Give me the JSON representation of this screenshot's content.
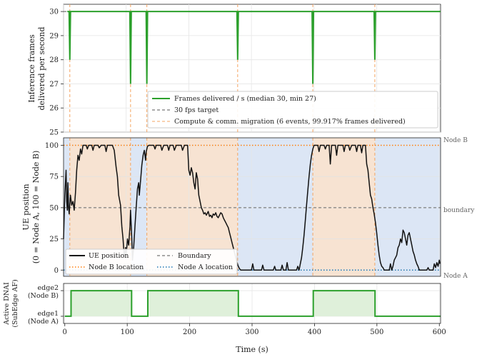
{
  "chart_data": [
    {
      "type": "line",
      "panel": "frames",
      "ylabel": [
        "Inference frames",
        "delivered per second"
      ],
      "ylim": [
        25,
        30.3
      ],
      "yticks": [
        25,
        26,
        27,
        28,
        29,
        30
      ],
      "xlim": [
        0,
        602
      ],
      "x_start": 6,
      "grid": true,
      "legend_placement": "lower-right",
      "series": [
        {
          "name": "Frames delivered / s (median 30, min 27)",
          "color": "#2ca02c",
          "baseline": 30,
          "dips": [
            {
              "x": 10,
              "y": 28
            },
            {
              "x": 107,
              "y": 27
            },
            {
              "x": 133,
              "y": 27
            },
            {
              "x": 278,
              "y": 28
            },
            {
              "x": 398,
              "y": 27
            },
            {
              "x": 497,
              "y": 28
            }
          ]
        },
        {
          "name": "30 fps target",
          "color": "#555555",
          "y": 30,
          "style": "dashed"
        },
        {
          "name": "Compute & comm. migration  (6 events, 99.917% frames delivered)",
          "color": "#f4a460",
          "style": "dashed",
          "x": [
            10,
            107,
            133,
            278,
            398,
            497
          ]
        }
      ]
    },
    {
      "type": "line",
      "panel": "position",
      "ylabel": [
        "UE position",
        "(0 = Node A,  100 = Node B)"
      ],
      "ylim": [
        -5,
        106
      ],
      "yticks": [
        0,
        25,
        50,
        75,
        100
      ],
      "xlim": [
        0,
        602
      ],
      "grid": true,
      "legend_placement": "lower-left",
      "right_labels": [
        {
          "y": 106,
          "text": "Node B"
        },
        {
          "y": 50,
          "text": "boundary"
        },
        {
          "y": -5,
          "text": "Node A"
        }
      ],
      "regions": [
        {
          "x": [
            0,
            10
          ],
          "node": "A",
          "color": "#dce6f5"
        },
        {
          "x": [
            10,
            107
          ],
          "node": "B",
          "color": "#f7e3d2"
        },
        {
          "x": [
            107,
            133
          ],
          "node": "A",
          "color": "#dce6f5"
        },
        {
          "x": [
            133,
            278
          ],
          "node": "B",
          "color": "#f7e3d2"
        },
        {
          "x": [
            278,
            398
          ],
          "node": "A",
          "color": "#dce6f5"
        },
        {
          "x": [
            398,
            497
          ],
          "node": "B",
          "color": "#f7e3d2"
        },
        {
          "x": [
            497,
            602
          ],
          "node": "A",
          "color": "#dce6f5"
        }
      ],
      "series": [
        {
          "name": "UE position",
          "color": "#111111",
          "points": [
            [
              0,
              25
            ],
            [
              2,
              60
            ],
            [
              4,
              80
            ],
            [
              5,
              55
            ],
            [
              6,
              48
            ],
            [
              7,
              70
            ],
            [
              8,
              50
            ],
            [
              9,
              45
            ],
            [
              11,
              60
            ],
            [
              13,
              52
            ],
            [
              15,
              55
            ],
            [
              17,
              48
            ],
            [
              19,
              62
            ],
            [
              21,
              80
            ],
            [
              23,
              92
            ],
            [
              25,
              88
            ],
            [
              27,
              97
            ],
            [
              29,
              93
            ],
            [
              31,
              100
            ],
            [
              36,
              100
            ],
            [
              38,
              97
            ],
            [
              40,
              100
            ],
            [
              45,
              100
            ],
            [
              47,
              96
            ],
            [
              49,
              100
            ],
            [
              55,
              100
            ],
            [
              57,
              98
            ],
            [
              60,
              100
            ],
            [
              66,
              100
            ],
            [
              68,
              95
            ],
            [
              70,
              100
            ],
            [
              78,
              100
            ],
            [
              81,
              96
            ],
            [
              84,
              82
            ],
            [
              86,
              75
            ],
            [
              88,
              60
            ],
            [
              91,
              52
            ],
            [
              93,
              35
            ],
            [
              95,
              25
            ],
            [
              97,
              10
            ],
            [
              99,
              18
            ],
            [
              100,
              12
            ],
            [
              102,
              25
            ],
            [
              104,
              20
            ],
            [
              106,
              35
            ],
            [
              107,
              48
            ],
            [
              109,
              25
            ],
            [
              110,
              8
            ],
            [
              112,
              18
            ],
            [
              114,
              35
            ],
            [
              116,
              50
            ],
            [
              118,
              65
            ],
            [
              120,
              70
            ],
            [
              121,
              60
            ],
            [
              123,
              72
            ],
            [
              125,
              84
            ],
            [
              127,
              92
            ],
            [
              129,
              96
            ],
            [
              131,
              88
            ],
            [
              132,
              95
            ],
            [
              134,
              99
            ],
            [
              136,
              100
            ],
            [
              144,
              100
            ],
            [
              146,
              97
            ],
            [
              148,
              100
            ],
            [
              155,
              100
            ],
            [
              157,
              96
            ],
            [
              160,
              100
            ],
            [
              166,
              100
            ],
            [
              168,
              96
            ],
            [
              170,
              100
            ],
            [
              175,
              100
            ],
            [
              177,
              96
            ],
            [
              180,
              100
            ],
            [
              188,
              100
            ],
            [
              190,
              96
            ],
            [
              193,
              100
            ],
            [
              198,
              100
            ],
            [
              200,
              80
            ],
            [
              202,
              76
            ],
            [
              204,
              82
            ],
            [
              206,
              78
            ],
            [
              208,
              70
            ],
            [
              210,
              65
            ],
            [
              212,
              78
            ],
            [
              214,
              73
            ],
            [
              216,
              60
            ],
            [
              218,
              55
            ],
            [
              220,
              50
            ],
            [
              222,
              48
            ],
            [
              224,
              45
            ],
            [
              226,
              46
            ],
            [
              228,
              44
            ],
            [
              231,
              47
            ],
            [
              233,
              43
            ],
            [
              235,
              44
            ],
            [
              237,
              42
            ],
            [
              239,
              45
            ],
            [
              241,
              44
            ],
            [
              243,
              46
            ],
            [
              245,
              43
            ],
            [
              247,
              42
            ],
            [
              249,
              44
            ],
            [
              251,
              46
            ],
            [
              253,
              45
            ],
            [
              255,
              42
            ],
            [
              257,
              40
            ],
            [
              259,
              38
            ],
            [
              261,
              36
            ],
            [
              263,
              34
            ],
            [
              265,
              30
            ],
            [
              267,
              26
            ],
            [
              269,
              22
            ],
            [
              271,
              18
            ],
            [
              273,
              14
            ],
            [
              275,
              10
            ],
            [
              277,
              6
            ],
            [
              279,
              3
            ],
            [
              281,
              1
            ],
            [
              283,
              0
            ],
            [
              300,
              0
            ],
            [
              302,
              5
            ],
            [
              304,
              0
            ],
            [
              316,
              0
            ],
            [
              318,
              4
            ],
            [
              320,
              0
            ],
            [
              335,
              0
            ],
            [
              337,
              3
            ],
            [
              339,
              0
            ],
            [
              347,
              0
            ],
            [
              349,
              4
            ],
            [
              351,
              0
            ],
            [
              355,
              0
            ],
            [
              357,
              6
            ],
            [
              359,
              0
            ],
            [
              372,
              0
            ],
            [
              374,
              3
            ],
            [
              376,
              0
            ],
            [
              380,
              10
            ],
            [
              382,
              18
            ],
            [
              384,
              28
            ],
            [
              386,
              40
            ],
            [
              388,
              52
            ],
            [
              390,
              64
            ],
            [
              392,
              75
            ],
            [
              394,
              85
            ],
            [
              396,
              92
            ],
            [
              398,
              97
            ],
            [
              400,
              100
            ],
            [
              406,
              100
            ],
            [
              408,
              95
            ],
            [
              410,
              100
            ],
            [
              416,
              100
            ],
            [
              418,
              97
            ],
            [
              420,
              100
            ],
            [
              424,
              100
            ],
            [
              426,
              85
            ],
            [
              428,
              100
            ],
            [
              434,
              100
            ],
            [
              436,
              92
            ],
            [
              438,
              100
            ],
            [
              446,
              100
            ],
            [
              448,
              95
            ],
            [
              450,
              100
            ],
            [
              455,
              100
            ],
            [
              457,
              96
            ],
            [
              460,
              100
            ],
            [
              466,
              100
            ],
            [
              468,
              95
            ],
            [
              470,
              100
            ],
            [
              474,
              100
            ],
            [
              476,
              94
            ],
            [
              478,
              100
            ],
            [
              482,
              100
            ],
            [
              484,
              85
            ],
            [
              486,
              80
            ],
            [
              488,
              70
            ],
            [
              490,
              60
            ],
            [
              492,
              57
            ],
            [
              494,
              50
            ],
            [
              496,
              45
            ],
            [
              498,
              38
            ],
            [
              500,
              30
            ],
            [
              502,
              20
            ],
            [
              504,
              12
            ],
            [
              506,
              6
            ],
            [
              508,
              3
            ],
            [
              510,
              2
            ],
            [
              512,
              0
            ],
            [
              520,
              0
            ],
            [
              522,
              5
            ],
            [
              524,
              0
            ],
            [
              526,
              3
            ],
            [
              528,
              8
            ],
            [
              530,
              10
            ],
            [
              532,
              12
            ],
            [
              534,
              18
            ],
            [
              536,
              20
            ],
            [
              538,
              25
            ],
            [
              540,
              22
            ],
            [
              542,
              32
            ],
            [
              544,
              30
            ],
            [
              546,
              25
            ],
            [
              548,
              20
            ],
            [
              550,
              28
            ],
            [
              552,
              30
            ],
            [
              554,
              25
            ],
            [
              556,
              20
            ],
            [
              558,
              15
            ],
            [
              560,
              12
            ],
            [
              562,
              8
            ],
            [
              564,
              5
            ],
            [
              566,
              3
            ],
            [
              568,
              0
            ],
            [
              580,
              0
            ],
            [
              582,
              2
            ],
            [
              584,
              0
            ],
            [
              590,
              0
            ],
            [
              592,
              5
            ],
            [
              594,
              2
            ],
            [
              596,
              6
            ],
            [
              598,
              3
            ],
            [
              600,
              8
            ],
            [
              601,
              5
            ]
          ]
        },
        {
          "name": "Boundary",
          "color": "#555555",
          "y": 50,
          "style": "dashed"
        },
        {
          "name": "Node B location",
          "color": "#ff7f0e",
          "y": 100,
          "style": "dotted"
        },
        {
          "name": "Node A location",
          "color": "#1f77b4",
          "y": 0,
          "style": "dotted"
        }
      ]
    },
    {
      "type": "line",
      "panel": "dnai",
      "ylabel": [
        "Active DNAI",
        "(SubEdge AF)"
      ],
      "xlabel": "Time (s)",
      "xlim": [
        -2,
        602
      ],
      "xticks": [
        0,
        100,
        200,
        300,
        400,
        500,
        600
      ],
      "ylim": [
        0.72,
        2.28
      ],
      "ytick_labels": [
        {
          "y": 1,
          "lines": [
            "edge1",
            "(Node A)"
          ]
        },
        {
          "y": 2,
          "lines": [
            "edge2",
            "(Node B)"
          ]
        }
      ],
      "grid": true,
      "series": [
        {
          "name": "DNAI",
          "color": "#2ca02c",
          "fill": "#dff0da",
          "points": [
            [
              0,
              1
            ],
            [
              10,
              1
            ],
            [
              10,
              2
            ],
            [
              107,
              2
            ],
            [
              107,
              1
            ],
            [
              133,
              1
            ],
            [
              133,
              2
            ],
            [
              278,
              2
            ],
            [
              278,
              1
            ],
            [
              398,
              1
            ],
            [
              398,
              2
            ],
            [
              497,
              2
            ],
            [
              497,
              1
            ],
            [
              602,
              1
            ]
          ]
        }
      ]
    }
  ]
}
